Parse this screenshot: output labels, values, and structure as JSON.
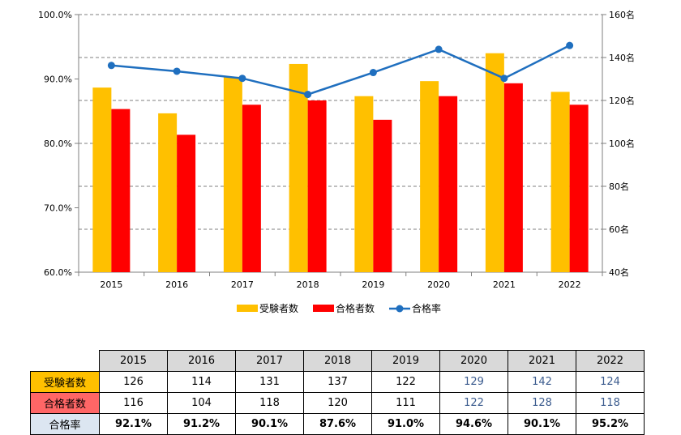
{
  "chart_data": {
    "type": "bar",
    "categories": [
      "2015",
      "2016",
      "2017",
      "2018",
      "2019",
      "2020",
      "2021",
      "2022"
    ],
    "series": [
      {
        "name": "受験者数",
        "kind": "bar",
        "axis": "right",
        "color": "#ffc000",
        "values": [
          126,
          114,
          131,
          137,
          122,
          129,
          142,
          124
        ]
      },
      {
        "name": "合格者数",
        "kind": "bar",
        "axis": "right",
        "color": "#ff0000",
        "values": [
          116,
          104,
          118,
          120,
          111,
          122,
          128,
          118
        ]
      },
      {
        "name": "合格率",
        "kind": "line",
        "axis": "left",
        "color": "#1f6fbf",
        "values": [
          92.1,
          91.2,
          90.1,
          87.6,
          91.0,
          94.6,
          90.1,
          95.2
        ]
      }
    ],
    "left_axis": {
      "min": 60,
      "max": 100,
      "ticks": [
        "60.0%",
        "70.0%",
        "80.0%",
        "90.0%",
        "100.0%"
      ]
    },
    "right_axis": {
      "min": 40,
      "max": 160,
      "ticks": [
        "40名",
        "60名",
        "80名",
        "100名",
        "120名",
        "140名",
        "160名"
      ]
    },
    "grid": true,
    "legend": "bottom"
  },
  "table": {
    "years": [
      "2015",
      "2016",
      "2017",
      "2018",
      "2019",
      "2020",
      "2021",
      "2022"
    ],
    "rows": [
      {
        "label": "受験者数",
        "color": "#ffc000",
        "values": [
          "126",
          "114",
          "131",
          "137",
          "122",
          "129",
          "142",
          "124"
        ]
      },
      {
        "label": "合格者数",
        "color": "#ff6666",
        "values": [
          "116",
          "104",
          "118",
          "120",
          "111",
          "122",
          "128",
          "118"
        ]
      },
      {
        "label": "合格率",
        "color": "#dce6f1",
        "values": [
          "92.1%",
          "91.2%",
          "90.1%",
          "87.6%",
          "91.0%",
          "94.6%",
          "90.1%",
          "95.2%"
        ]
      }
    ]
  }
}
